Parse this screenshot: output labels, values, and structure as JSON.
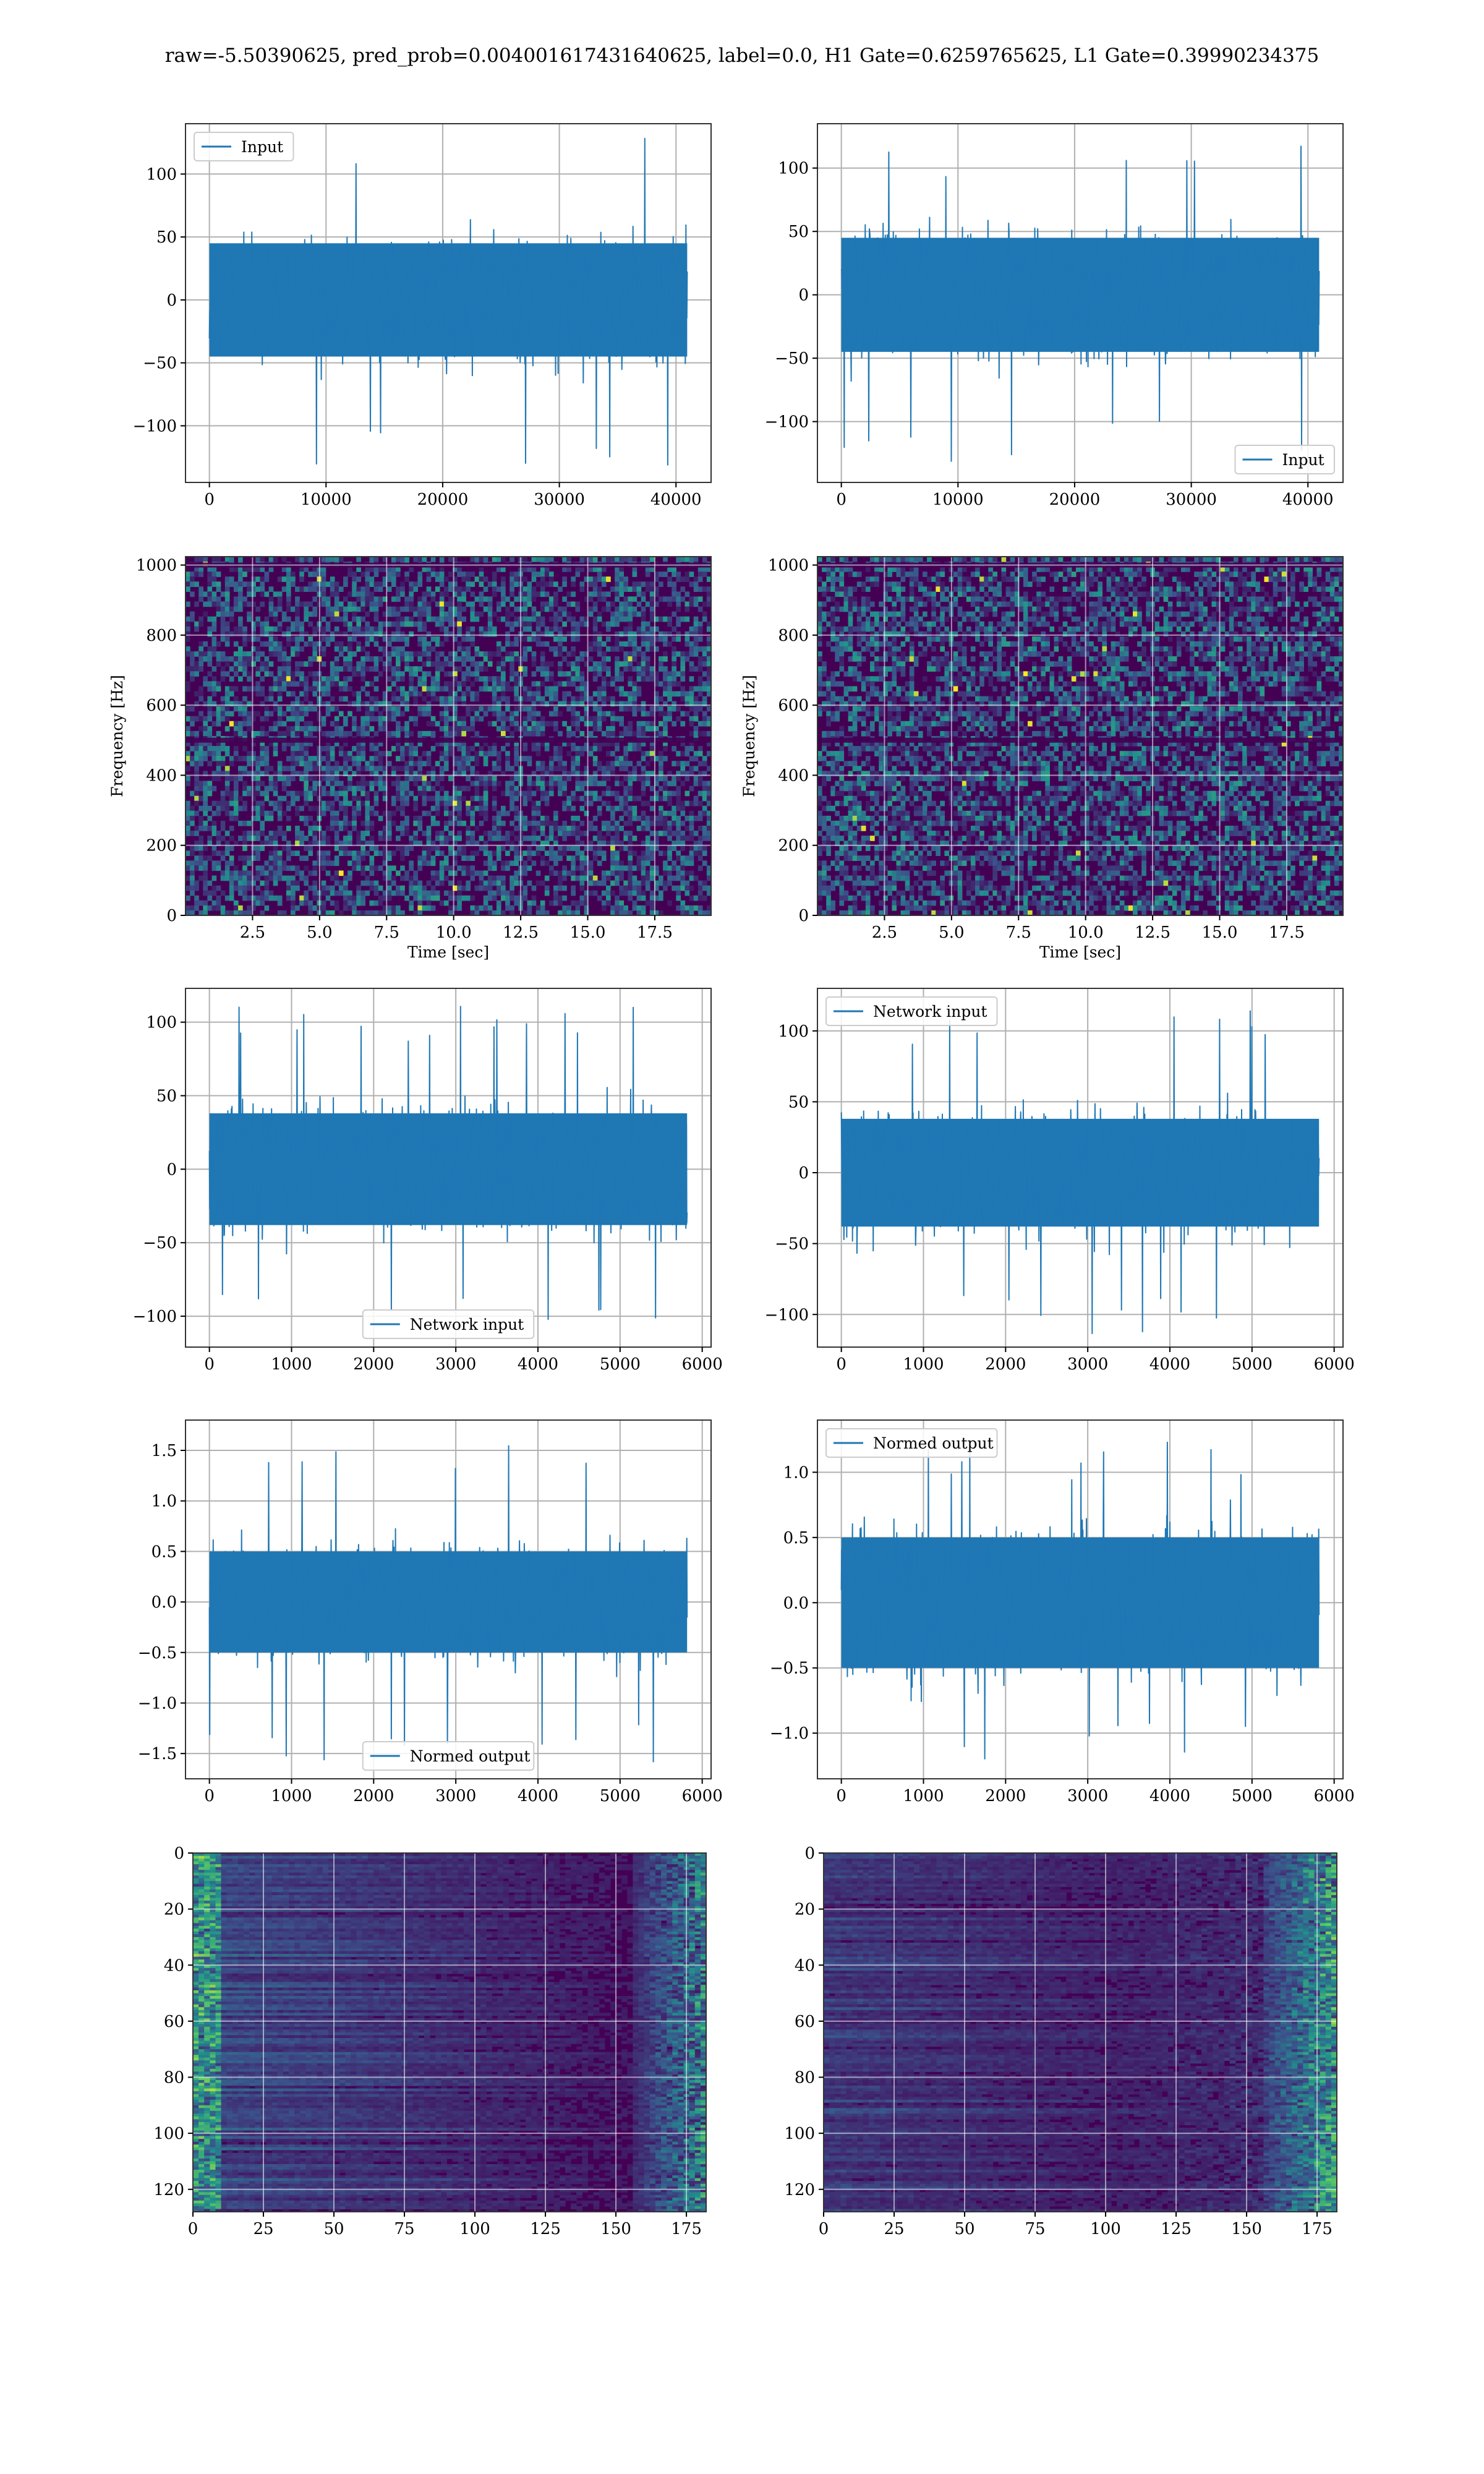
{
  "figure": {
    "suptitle": "raw=-5.50390625, pred_prob=0.004001617431640625, label=0.0, H1 Gate=0.6259765625, L1 Gate=0.39990234375"
  },
  "colors": {
    "line": "#1f77b4",
    "grid": "#b0b0b0",
    "viridis": [
      "#440154",
      "#3b528b",
      "#21918c",
      "#5ec962",
      "#fde725"
    ]
  },
  "chart_data": [
    {
      "id": "input-h1",
      "type": "line",
      "title": "",
      "xlabel": "",
      "ylabel": "",
      "xlim": [
        -2048,
        43008
      ],
      "ylim": [
        -145,
        140
      ],
      "xticks": [
        0,
        10000,
        20000,
        30000,
        40000
      ],
      "xtick_labels": [
        "0",
        "10000",
        "20000",
        "30000",
        "40000"
      ],
      "yticks": [
        -100,
        -50,
        0,
        50,
        100
      ],
      "ytick_labels": [
        "−100",
        "−50",
        "0",
        "50",
        "100"
      ],
      "legend": "upper left",
      "grid": true,
      "series": [
        {
          "name": "Input",
          "kind": "noise",
          "x_range": [
            0,
            40960
          ],
          "band": [
            -45,
            45
          ],
          "extreme": [
            -133,
            130
          ]
        }
      ]
    },
    {
      "id": "input-l1",
      "type": "line",
      "title": "",
      "xlabel": "",
      "ylabel": "",
      "xlim": [
        -2048,
        43008
      ],
      "ylim": [
        -148,
        135
      ],
      "xticks": [
        0,
        10000,
        20000,
        30000,
        40000
      ],
      "xtick_labels": [
        "0",
        "10000",
        "20000",
        "30000",
        "40000"
      ],
      "yticks": [
        -100,
        -50,
        0,
        50,
        100
      ],
      "ytick_labels": [
        "−100",
        "−50",
        "0",
        "50",
        "100"
      ],
      "legend": "lower right",
      "grid": true,
      "series": [
        {
          "name": "Input",
          "kind": "noise",
          "x_range": [
            0,
            40960
          ],
          "band": [
            -45,
            45
          ],
          "extreme": [
            -132,
            123
          ]
        }
      ]
    },
    {
      "id": "spectrogram-h1",
      "type": "heatmap",
      "title": "",
      "xlabel": "Time [sec]",
      "ylabel": "Frequency [Hz]",
      "xlim": [
        0,
        19.6
      ],
      "ylim": [
        0,
        1024
      ],
      "xticks": [
        2.5,
        5.0,
        7.5,
        10.0,
        12.5,
        15.0,
        17.5
      ],
      "xtick_labels": [
        "2.5",
        "5.0",
        "7.5",
        "10.0",
        "12.5",
        "15.0",
        "17.5"
      ],
      "yticks": [
        0,
        200,
        400,
        600,
        800,
        1000
      ],
      "ytick_labels": [
        "0",
        "200",
        "400",
        "600",
        "800",
        "1000"
      ],
      "grid": true,
      "colormap": "viridis",
      "cells": {
        "kind": "speckle",
        "dark_rows_hz": [
          500,
          1000
        ]
      }
    },
    {
      "id": "spectrogram-l1",
      "type": "heatmap",
      "title": "",
      "xlabel": "Time [sec]",
      "ylabel": "Frequency [Hz]",
      "xlim": [
        0,
        19.6
      ],
      "ylim": [
        0,
        1024
      ],
      "xticks": [
        2.5,
        5.0,
        7.5,
        10.0,
        12.5,
        15.0,
        17.5
      ],
      "xtick_labels": [
        "2.5",
        "5.0",
        "7.5",
        "10.0",
        "12.5",
        "15.0",
        "17.5"
      ],
      "yticks": [
        0,
        200,
        400,
        600,
        800,
        1000
      ],
      "ytick_labels": [
        "0",
        "200",
        "400",
        "600",
        "800",
        "1000"
      ],
      "grid": true,
      "colormap": "viridis",
      "cells": {
        "kind": "speckle",
        "dark_rows_hz": [
          500,
          1000
        ]
      }
    },
    {
      "id": "network-input-h1",
      "type": "line",
      "title": "",
      "xlabel": "",
      "ylabel": "",
      "xlim": [
        -291,
        6108
      ],
      "ylim": [
        -121,
        123
      ],
      "xticks": [
        0,
        1000,
        2000,
        3000,
        4000,
        5000,
        6000
      ],
      "xtick_labels": [
        "0",
        "1000",
        "2000",
        "3000",
        "4000",
        "5000",
        "6000"
      ],
      "yticks": [
        -100,
        -50,
        0,
        50,
        100
      ],
      "ytick_labels": [
        "−100",
        "−50",
        "0",
        "50",
        "100"
      ],
      "legend": "lower center",
      "grid": true,
      "series": [
        {
          "name": "Network input",
          "kind": "noise",
          "x_range": [
            0,
            5816
          ],
          "band": [
            -38,
            38
          ],
          "extreme": [
            -103,
            111
          ]
        }
      ]
    },
    {
      "id": "network-input-l1",
      "type": "line",
      "title": "",
      "xlabel": "",
      "ylabel": "",
      "xlim": [
        -291,
        6108
      ],
      "ylim": [
        -123,
        130
      ],
      "xticks": [
        0,
        1000,
        2000,
        3000,
        4000,
        5000,
        6000
      ],
      "xtick_labels": [
        "0",
        "1000",
        "2000",
        "3000",
        "4000",
        "5000",
        "6000"
      ],
      "yticks": [
        -100,
        -50,
        0,
        50,
        100
      ],
      "ytick_labels": [
        "−100",
        "−50",
        "0",
        "50",
        "100"
      ],
      "legend": "upper left",
      "grid": true,
      "series": [
        {
          "name": "Network input",
          "kind": "noise",
          "x_range": [
            0,
            5816
          ],
          "band": [
            -38,
            38
          ],
          "extreme": [
            -114,
            117
          ]
        }
      ]
    },
    {
      "id": "normed-output-h1",
      "type": "line",
      "title": "",
      "xlabel": "",
      "ylabel": "",
      "xlim": [
        -291,
        6108
      ],
      "ylim": [
        -1.75,
        1.8
      ],
      "xticks": [
        0,
        1000,
        2000,
        3000,
        4000,
        5000,
        6000
      ],
      "xtick_labels": [
        "0",
        "1000",
        "2000",
        "3000",
        "4000",
        "5000",
        "6000"
      ],
      "yticks": [
        -1.5,
        -1.0,
        -0.5,
        0.0,
        0.5,
        1.0,
        1.5
      ],
      "ytick_labels": [
        "−1.5",
        "−1.0",
        "−0.5",
        "0.0",
        "0.5",
        "1.0",
        "1.5"
      ],
      "legend": "lower center",
      "grid": true,
      "series": [
        {
          "name": "Normed output",
          "kind": "noise",
          "x_range": [
            0,
            5816
          ],
          "band": [
            -0.5,
            0.5
          ],
          "extreme": [
            -1.6,
            1.63
          ]
        }
      ]
    },
    {
      "id": "normed-output-l1",
      "type": "line",
      "title": "",
      "xlabel": "",
      "ylabel": "",
      "xlim": [
        -291,
        6108
      ],
      "ylim": [
        -1.35,
        1.4
      ],
      "xticks": [
        0,
        1000,
        2000,
        3000,
        4000,
        5000,
        6000
      ],
      "xtick_labels": [
        "0",
        "1000",
        "2000",
        "3000",
        "4000",
        "5000",
        "6000"
      ],
      "yticks": [
        -1.0,
        -0.5,
        0.0,
        0.5,
        1.0
      ],
      "ytick_labels": [
        "−1.0",
        "−0.5",
        "0.0",
        "0.5",
        "1.0"
      ],
      "legend": "upper left",
      "grid": true,
      "series": [
        {
          "name": "Normed output",
          "kind": "noise",
          "x_range": [
            0,
            5816
          ],
          "band": [
            -0.5,
            0.5
          ],
          "extreme": [
            -1.2,
            1.24
          ]
        }
      ]
    },
    {
      "id": "feature-map-h1",
      "type": "heatmap",
      "title": "",
      "xlabel": "",
      "ylabel": "",
      "xlim": [
        0,
        182
      ],
      "ylim": [
        128,
        0
      ],
      "xticks": [
        0,
        25,
        50,
        75,
        100,
        125,
        150,
        175
      ],
      "xtick_labels": [
        "0",
        "25",
        "50",
        "75",
        "100",
        "125",
        "150",
        "175"
      ],
      "yticks": [
        0,
        20,
        40,
        60,
        80,
        100,
        120
      ],
      "ytick_labels": [
        "0",
        "20",
        "40",
        "60",
        "80",
        "100",
        "120"
      ],
      "grid": true,
      "colormap": "viridis",
      "cells": {
        "kind": "rows",
        "rows": 128,
        "cols": 182,
        "hot_left": true,
        "hot_right": true
      }
    },
    {
      "id": "feature-map-l1",
      "type": "heatmap",
      "title": "",
      "xlabel": "",
      "ylabel": "",
      "xlim": [
        0,
        182
      ],
      "ylim": [
        128,
        0
      ],
      "xticks": [
        0,
        25,
        50,
        75,
        100,
        125,
        150,
        175
      ],
      "xtick_labels": [
        "0",
        "25",
        "50",
        "75",
        "100",
        "125",
        "150",
        "175"
      ],
      "yticks": [
        0,
        20,
        40,
        60,
        80,
        100,
        120
      ],
      "ytick_labels": [
        "0",
        "20",
        "40",
        "60",
        "80",
        "100",
        "120"
      ],
      "grid": true,
      "colormap": "viridis",
      "cells": {
        "kind": "rows",
        "rows": 128,
        "cols": 182,
        "hot_left": false,
        "hot_right": true
      }
    }
  ]
}
